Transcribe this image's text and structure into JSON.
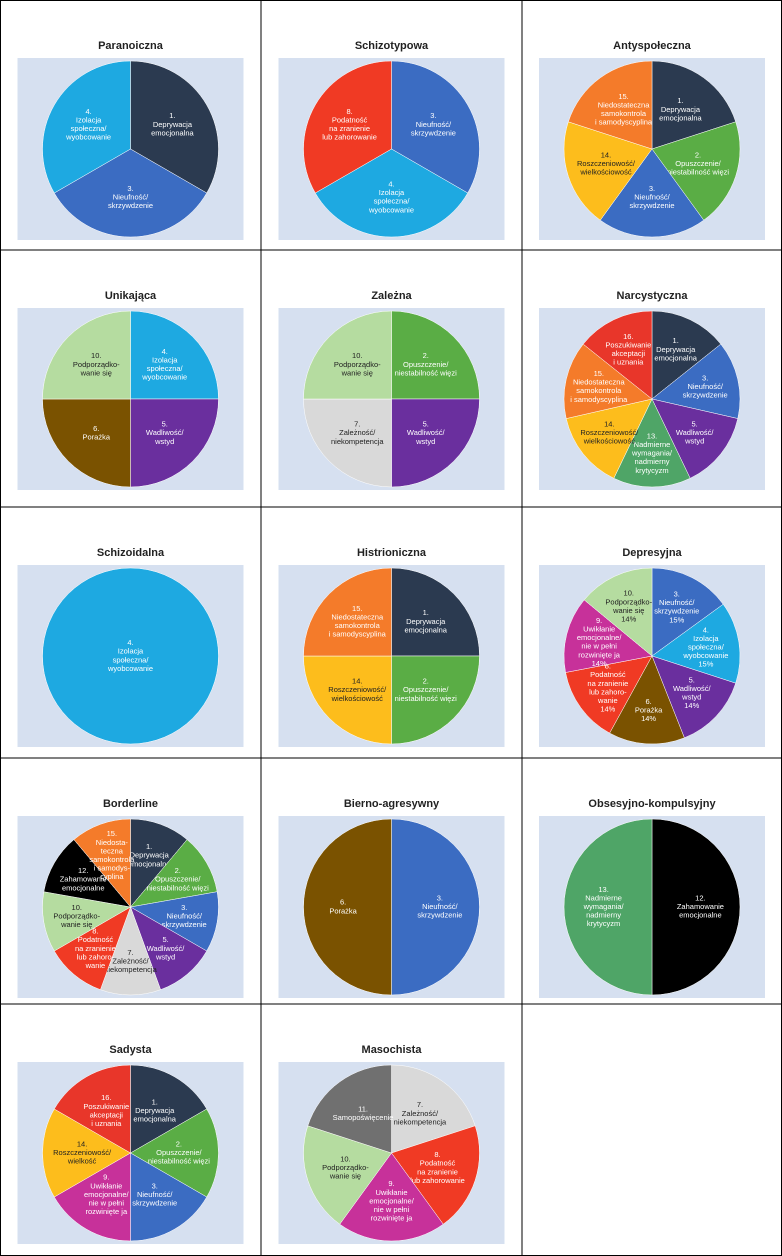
{
  "chart_data": [
    {
      "type": "pie",
      "title": "Paranoiczna",
      "categories": [
        [
          "1.",
          "Deprywacja",
          "emocjonalna"
        ],
        [
          "3.",
          "Nieufność/",
          "skrzywdzenie"
        ],
        [
          "4.",
          "Izolacja",
          "społeczna/",
          "wyobcowanie"
        ]
      ],
      "values": [
        33.3,
        33.3,
        33.3
      ],
      "colors": [
        "#2b3a50",
        "#3b6cc2",
        "#1ea9e1"
      ]
    },
    {
      "type": "pie",
      "title": "Schizotypowa",
      "categories": [
        [
          "3.",
          "Nieufność/",
          "skrzywdzenie"
        ],
        [
          "4.",
          "Izolacja",
          "społeczna/",
          "wyobcowanie"
        ],
        [
          "8.",
          "Podatność",
          "na zranienie",
          "lub zahorowanie"
        ]
      ],
      "values": [
        33.3,
        33.3,
        33.3
      ],
      "colors": [
        "#3b6cc2",
        "#1ea9e1",
        "#f03a24"
      ]
    },
    {
      "type": "pie",
      "title": "Antyspołeczna",
      "categories": [
        [
          "1.",
          "Deprywacja",
          "emocjonalna"
        ],
        [
          "2.",
          "Opuszczenie/",
          "niestabilność więzi"
        ],
        [
          "3.",
          "Nieufność/",
          "skrzywdzenie"
        ],
        [
          "14.",
          "Roszczeniowość/",
          "wielkościowość"
        ],
        [
          "15.",
          "Niedostateczna",
          "samokontrola",
          "i samodyscyplina"
        ]
      ],
      "values": [
        20,
        20,
        20,
        20,
        20
      ],
      "colors": [
        "#2b3a50",
        "#5aad45",
        "#3b6cc2",
        "#fdbd1c",
        "#f47b2a"
      ]
    },
    {
      "type": "pie",
      "title": "Unikająca",
      "categories": [
        [
          "4.",
          "Izolacja",
          "społeczna/",
          "wyobcowanie"
        ],
        [
          "5.",
          "Wadliwość/",
          "wstyd"
        ],
        [
          "6.",
          "Porażka"
        ],
        [
          "10.",
          "Podporządko-",
          "wanie się"
        ]
      ],
      "values": [
        25,
        25,
        25,
        25
      ],
      "colors": [
        "#1ea9e1",
        "#6a2f9e",
        "#7a5200",
        "#b5dca0"
      ]
    },
    {
      "type": "pie",
      "title": "Zależna",
      "categories": [
        [
          "2.",
          "Opuszczenie/",
          "niestabilność więzi"
        ],
        [
          "5.",
          "Wadliwość/",
          "wstyd"
        ],
        [
          "7.",
          "Zależność/",
          "niekompetencja"
        ],
        [
          "10.",
          "Podporządko-",
          "wanie się"
        ]
      ],
      "values": [
        25,
        25,
        25,
        25
      ],
      "colors": [
        "#5aad45",
        "#6a2f9e",
        "#d9d9d9",
        "#b5dca0"
      ]
    },
    {
      "type": "pie",
      "title": "Narcystyczna",
      "categories": [
        [
          "1.",
          "Deprywacja",
          "emocjonalna"
        ],
        [
          "3.",
          "Nieufność/",
          "skrzywdzenie"
        ],
        [
          "5.",
          "Wadliwość/",
          "wstyd"
        ],
        [
          "13.",
          "Nadmierne",
          "wymagania/",
          "nadmierny",
          "krytycyzm"
        ],
        [
          "14.",
          "Roszczeniowość/",
          "wielkościowość"
        ],
        [
          "15.",
          "Niedostateczna",
          "samokontrola",
          "i samodyscyplina"
        ],
        [
          "16.",
          "Poszukiwanie",
          "akceptacji",
          "i uznania"
        ]
      ],
      "values": [
        14.3,
        14.3,
        14.3,
        14.3,
        14.3,
        14.3,
        14.3
      ],
      "colors": [
        "#2b3a50",
        "#3b6cc2",
        "#6a2f9e",
        "#4fa567",
        "#fdbd1c",
        "#f47b2a",
        "#e8362a"
      ]
    },
    {
      "type": "pie",
      "title": "Schizoidalna",
      "categories": [
        [
          "4.",
          "Izolacja",
          "społeczna/",
          "wyobcowanie"
        ]
      ],
      "values": [
        100
      ],
      "colors": [
        "#1ea9e1"
      ]
    },
    {
      "type": "pie",
      "title": "Histrioniczna",
      "categories": [
        [
          "1.",
          "Deprywacja",
          "emocjonalna"
        ],
        [
          "2.",
          "Opuszczenie/",
          "niestabilność więzi"
        ],
        [
          "14.",
          "Roszczeniowość/",
          "wielkościowość"
        ],
        [
          "15.",
          "Niedostateczna",
          "samokontrola",
          "i samodyscyplina"
        ]
      ],
      "values": [
        25,
        25,
        25,
        25
      ],
      "colors": [
        "#2b3a50",
        "#5aad45",
        "#fdbd1c",
        "#f47b2a"
      ]
    },
    {
      "type": "pie",
      "title": "Depresyjna",
      "categories": [
        [
          "3.",
          "Nieufność/",
          "skrzywdzenie"
        ],
        [
          "4.",
          "Izolacja",
          "społeczna/",
          "wyobcowanie"
        ],
        [
          "5.",
          "Wadliwość/",
          "wstyd"
        ],
        [
          "6.",
          "Porażka"
        ],
        [
          "8.",
          "Podatność",
          "na zranienie",
          "lub zahoro-",
          "wanie"
        ],
        [
          "9.",
          "Uwikłanie",
          "emocjonalne/",
          "nie w pełni",
          "rozwinięte ja"
        ],
        [
          "10.",
          "Podporządko-",
          "wanie się"
        ]
      ],
      "values": [
        15,
        15,
        14,
        14,
        14,
        14,
        14
      ],
      "value_labels": [
        "15%",
        "15%",
        "14%",
        "14%",
        "14%",
        "14%",
        "14%"
      ],
      "colors": [
        "#3b6cc2",
        "#1ea9e1",
        "#6a2f9e",
        "#7a5200",
        "#f03a24",
        "#c7319a",
        "#b5dca0"
      ]
    },
    {
      "type": "pie",
      "title": "Borderline",
      "categories": [
        [
          "1.",
          "Deprywacja",
          "emocjonalna"
        ],
        [
          "2.",
          "Opuszczenie/",
          "niestabilność więzi"
        ],
        [
          "3.",
          "Nieufność/",
          "skrzywdzenie"
        ],
        [
          "5.",
          "Wadliwość/",
          "wstyd"
        ],
        [
          "7.",
          "Zależność/",
          "niekompetencja"
        ],
        [
          "8.",
          "Podatność",
          "na zranienie",
          "lub zahoro-",
          "wanie"
        ],
        [
          "10.",
          "Podporządko-",
          "wanie się"
        ],
        [
          "12.",
          "Zahamowanie",
          "emocjonalne"
        ],
        [
          "15.",
          "Niedosta-",
          "teczna",
          "samokontrola",
          "i samodys-",
          "cyplina"
        ]
      ],
      "values": [
        11.1,
        11.1,
        11.1,
        11.1,
        11.1,
        11.1,
        11.1,
        11.1,
        11.1
      ],
      "colors": [
        "#2b3a50",
        "#5aad45",
        "#3b6cc2",
        "#6a2f9e",
        "#d9d9d9",
        "#f03a24",
        "#b5dca0",
        "#000000",
        "#f47b2a"
      ]
    },
    {
      "type": "pie",
      "title": "Bierno-agresywny",
      "categories": [
        [
          "3.",
          "Nieufność/",
          "skrzywdzenie"
        ],
        [
          "6.",
          "Porażka"
        ]
      ],
      "values": [
        50,
        50
      ],
      "colors": [
        "#3b6cc2",
        "#7a5200"
      ]
    },
    {
      "type": "pie",
      "title": "Obsesyjno-kompulsyjny",
      "categories": [
        [
          "12.",
          "Zahamowanie",
          "emocjonalne"
        ],
        [
          "13.",
          "Nadmierne",
          "wymagania/",
          "nadmierny",
          "krytycyzm"
        ]
      ],
      "values": [
        50,
        50
      ],
      "colors": [
        "#000000",
        "#4fa567"
      ]
    },
    {
      "type": "pie",
      "title": "Sadysta",
      "categories": [
        [
          "1.",
          "Deprywacja",
          "emocjonalna"
        ],
        [
          "2.",
          "Opuszczenie/",
          "niestabilność więzi"
        ],
        [
          "3.",
          "Nieufność/",
          "skrzywdzenie"
        ],
        [
          "9.",
          "Uwikłanie",
          "emocjonalne/",
          "nie w pełni",
          "rozwinięte ja"
        ],
        [
          "14.",
          "Roszczeniowość/",
          "wielkość"
        ],
        [
          "16.",
          "Poszukiwanie",
          "akceptacji",
          "i uznania"
        ]
      ],
      "values": [
        16.7,
        16.7,
        16.7,
        16.7,
        16.7,
        16.7
      ],
      "colors": [
        "#2b3a50",
        "#5aad45",
        "#3b6cc2",
        "#c7319a",
        "#fdbd1c",
        "#e8362a"
      ]
    },
    {
      "type": "pie",
      "title": "Masochista",
      "categories": [
        [
          "7.",
          "Zależność/",
          "niekompetencja"
        ],
        [
          "8.",
          "Podatność",
          "na zranienie",
          "lub zahorowanie"
        ],
        [
          "9.",
          "Uwikłanie",
          "emocjonalne/",
          "nie w pełni",
          "rozwinięte ja"
        ],
        [
          "10.",
          "Podporządko-",
          "wanie się"
        ],
        [
          "11.",
          "Samopoświęcenie"
        ]
      ],
      "values": [
        20,
        20,
        20,
        20,
        20
      ],
      "colors": [
        "#d9d9d9",
        "#f03a24",
        "#c7319a",
        "#b5dca0",
        "#707070"
      ]
    }
  ]
}
